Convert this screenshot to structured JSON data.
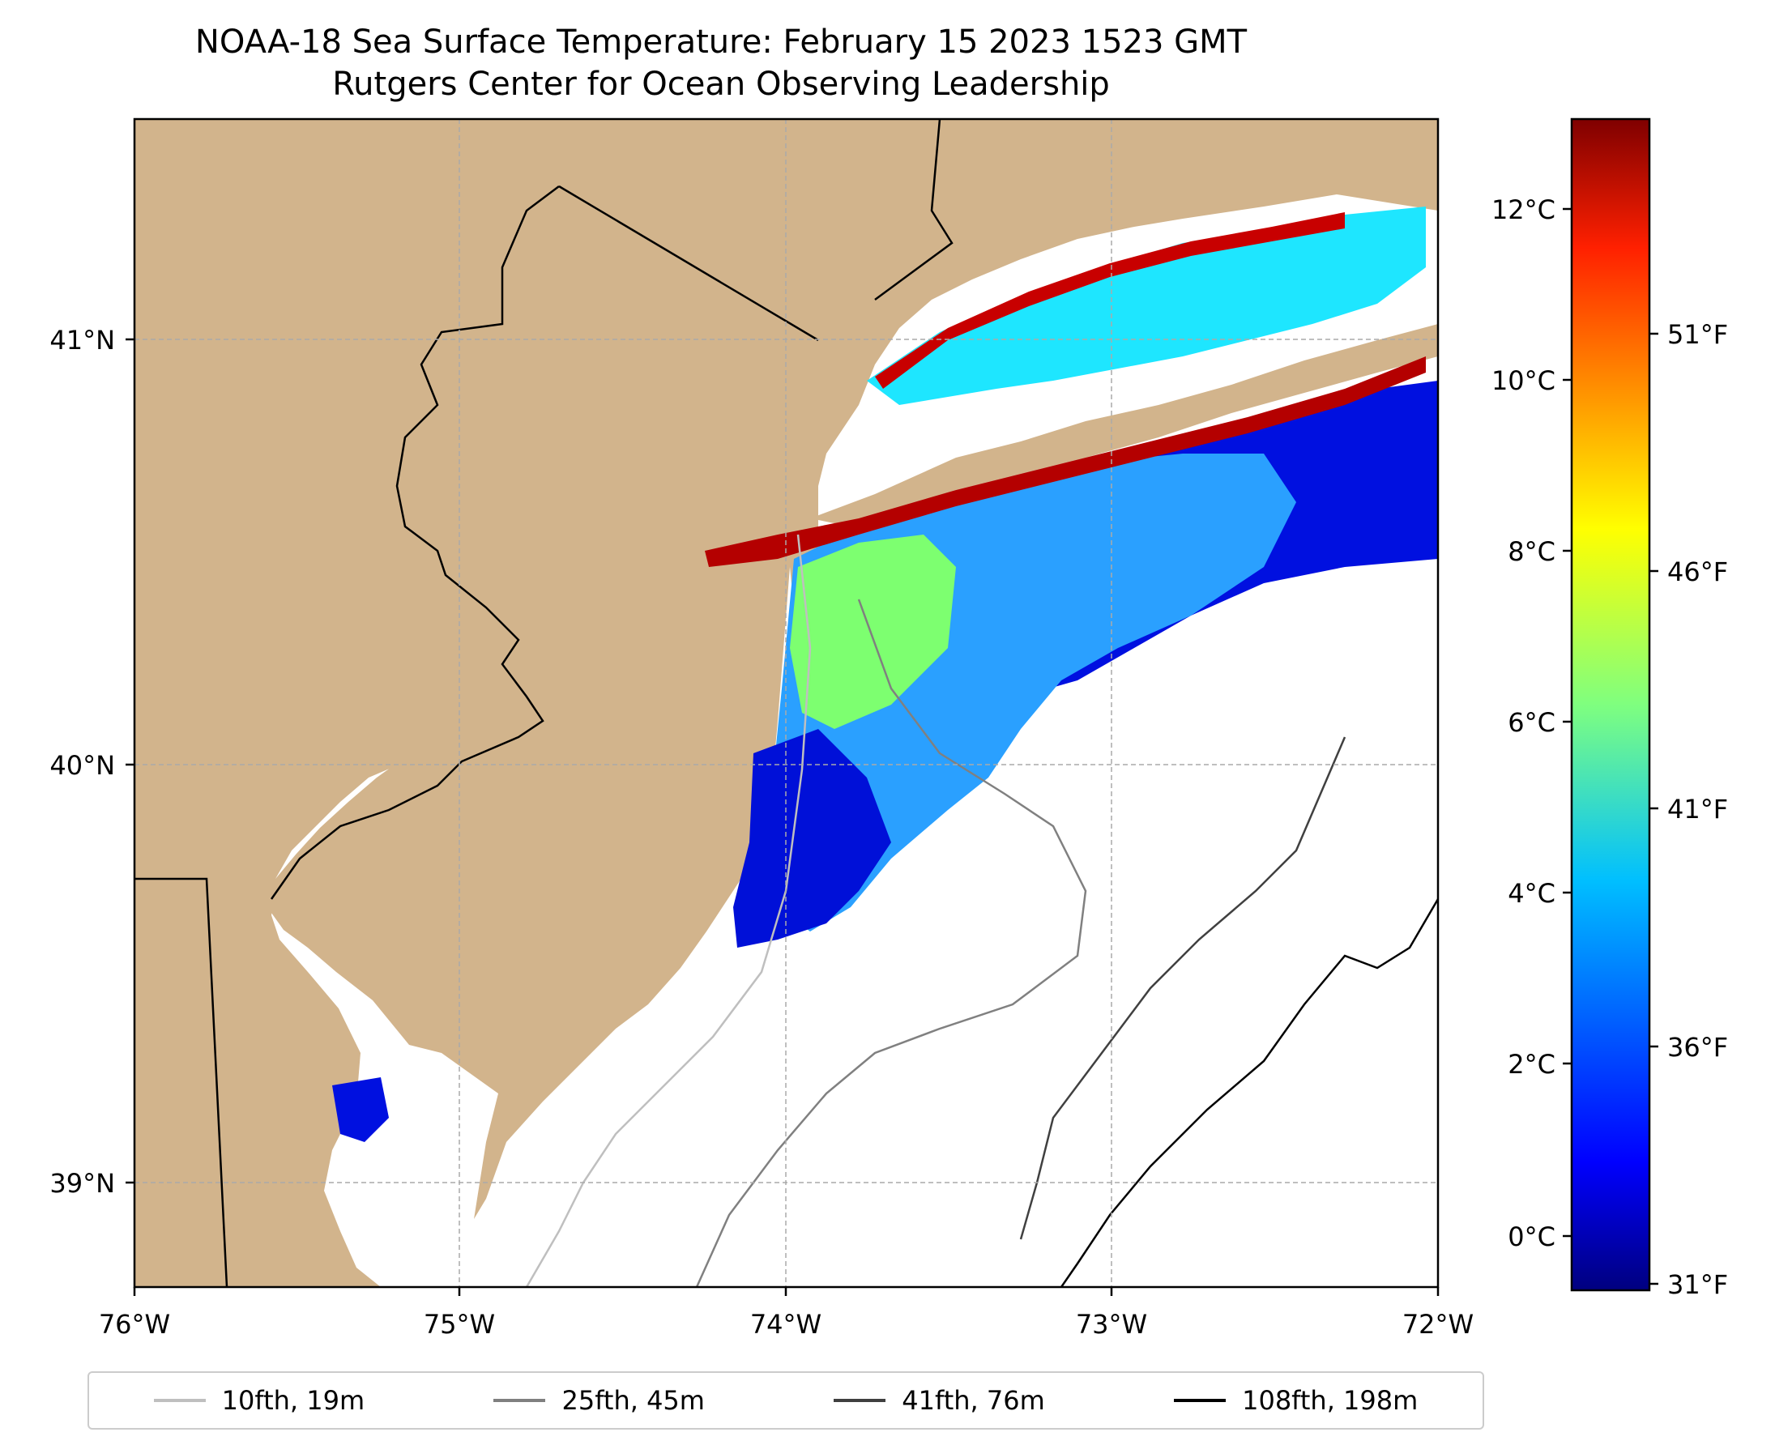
{
  "title": {
    "line1": "NOAA-18 Sea Surface Temperature: February 15 2023 1523 GMT",
    "line2": "Rutgers Center for Ocean Observing Leadership"
  },
  "map": {
    "lon_range": [
      -76,
      -72
    ],
    "lat_range": [
      38.75,
      41.5
    ],
    "lon_ticks": [
      "76°W",
      "75°W",
      "74°W",
      "73°W",
      "72°W"
    ],
    "lat_ticks": [
      "41°N",
      "40°N",
      "39°N"
    ],
    "land_color": "#d2b48c",
    "ocean_color": "#ffffff",
    "grid": "dashed"
  },
  "colorbar": {
    "colormap": "jet",
    "celsius_ticks": [
      "12°C",
      "10°C",
      "8°C",
      "6°C",
      "4°C",
      "2°C",
      "0°C"
    ],
    "fahrenheit_ticks": [
      "51°F",
      "46°F",
      "41°F",
      "36°F",
      "31°F"
    ],
    "range_c": [
      -0.6,
      13.1
    ]
  },
  "legend": [
    {
      "label": "10fth, 19m",
      "color": "#bfbfbf"
    },
    {
      "label": "25fth, 45m",
      "color": "#808080"
    },
    {
      "label": "41fth, 76m",
      "color": "#404040"
    },
    {
      "label": "108fth, 198m",
      "color": "#000000"
    }
  ]
}
